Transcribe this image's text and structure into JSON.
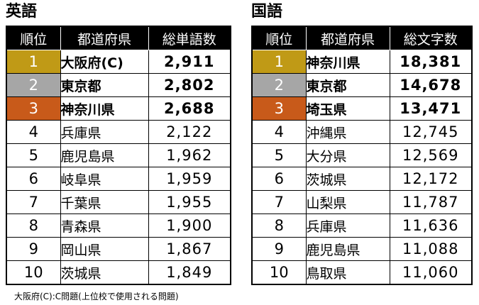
{
  "english": {
    "title": "英語",
    "headers": {
      "rank": "順位",
      "prefecture": "都道府県",
      "value": "総単語数"
    },
    "rows": [
      {
        "rank": "1",
        "prefecture": "大阪府(C)",
        "value": "2,911"
      },
      {
        "rank": "2",
        "prefecture": "東京都",
        "value": "2,802"
      },
      {
        "rank": "3",
        "prefecture": "神奈川県",
        "value": "2,688"
      },
      {
        "rank": "4",
        "prefecture": "兵庫県",
        "value": "2,122"
      },
      {
        "rank": "5",
        "prefecture": "鹿児島県",
        "value": "1,962"
      },
      {
        "rank": "6",
        "prefecture": "岐阜県",
        "value": "1,959"
      },
      {
        "rank": "7",
        "prefecture": "千葉県",
        "value": "1,955"
      },
      {
        "rank": "8",
        "prefecture": "青森県",
        "value": "1,900"
      },
      {
        "rank": "9",
        "prefecture": "岡山県",
        "value": "1,867"
      },
      {
        "rank": "10",
        "prefecture": "茨城県",
        "value": "1,849"
      }
    ]
  },
  "japanese": {
    "title": "国語",
    "headers": {
      "rank": "順位",
      "prefecture": "都道府県",
      "value": "総文字数"
    },
    "rows": [
      {
        "rank": "1",
        "prefecture": "神奈川県",
        "value": "18,381"
      },
      {
        "rank": "2",
        "prefecture": "東京都",
        "value": "14,678"
      },
      {
        "rank": "3",
        "prefecture": "埼玉県",
        "value": "13,471"
      },
      {
        "rank": "4",
        "prefecture": "沖縄県",
        "value": "12,745"
      },
      {
        "rank": "5",
        "prefecture": "大分県",
        "value": "12,569"
      },
      {
        "rank": "6",
        "prefecture": "茨城県",
        "value": "12,172"
      },
      {
        "rank": "7",
        "prefecture": "山梨県",
        "value": "11,787"
      },
      {
        "rank": "8",
        "prefecture": "兵庫県",
        "value": "11,636"
      },
      {
        "rank": "9",
        "prefecture": "鹿児島県",
        "value": "11,088"
      },
      {
        "rank": "10",
        "prefecture": "鳥取県",
        "value": "11,060"
      }
    ]
  },
  "footnote": "大阪府(C):C問題(上位校で使用される問題)",
  "colors": {
    "gold": "#c09a16",
    "silver": "#a6a6a6",
    "bronze": "#c85a1a",
    "header_bg": "#000000"
  }
}
